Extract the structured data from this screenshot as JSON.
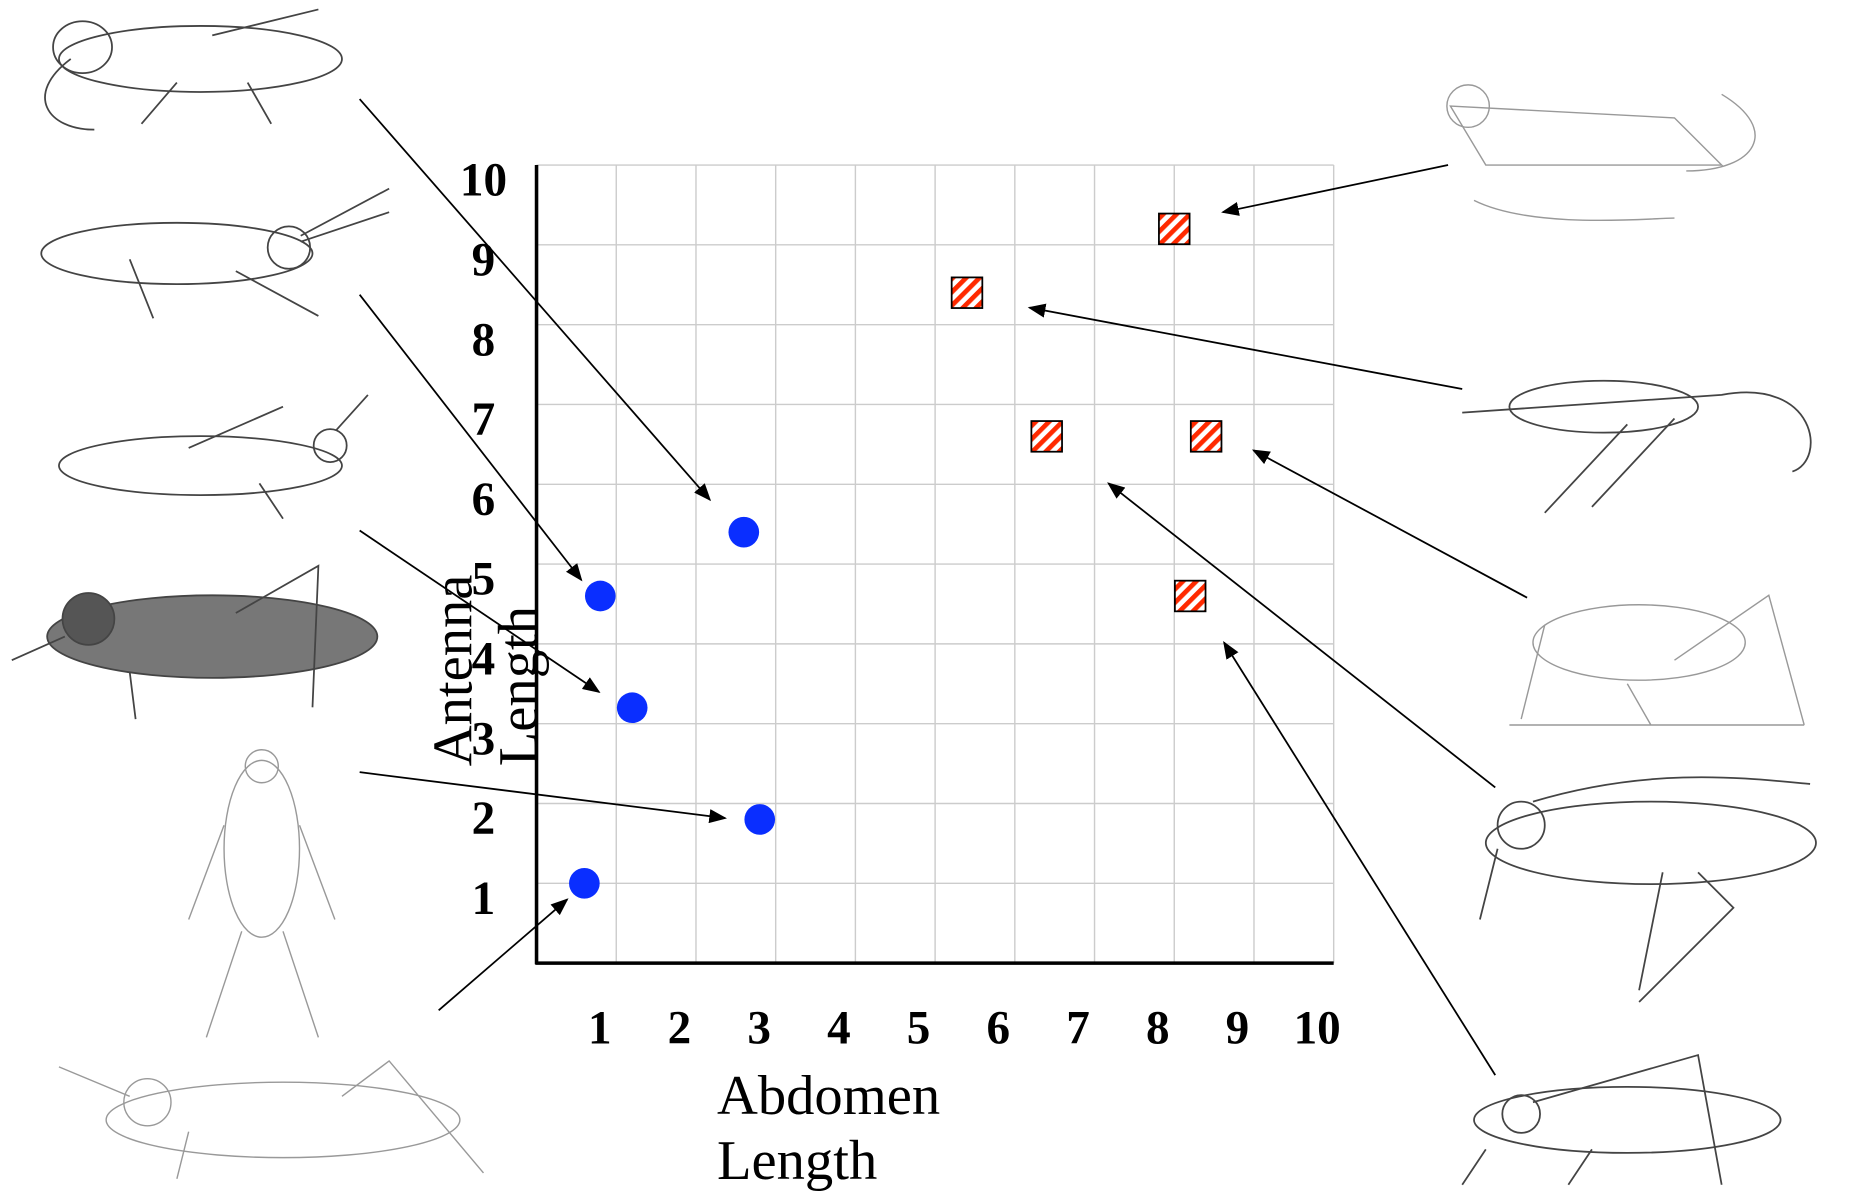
{
  "chart_data": {
    "type": "scatter",
    "x_label": "Abdomen Length",
    "y_label": "Antenna Length",
    "xlim": [
      0,
      10
    ],
    "ylim": [
      0,
      10
    ],
    "xticks": [
      1,
      2,
      3,
      4,
      5,
      6,
      7,
      8,
      9,
      10
    ],
    "yticks": [
      1,
      2,
      3,
      4,
      5,
      6,
      7,
      8,
      9,
      10
    ],
    "grid": true,
    "series": [
      {
        "color": "#0a2eff",
        "marker": "circle",
        "x": [
          0.6,
          2.8,
          1.2,
          0.8,
          2.6
        ],
        "values": [
          1.0,
          1.8,
          3.2,
          4.6,
          5.4
        ]
      },
      {
        "color": "#ff2a00",
        "marker": "hatched-square",
        "x": [
          8.0,
          5.4,
          6.4,
          8.4,
          8.2
        ],
        "values": [
          9.2,
          8.4,
          6.6,
          6.6,
          4.6
        ]
      }
    ]
  }
}
